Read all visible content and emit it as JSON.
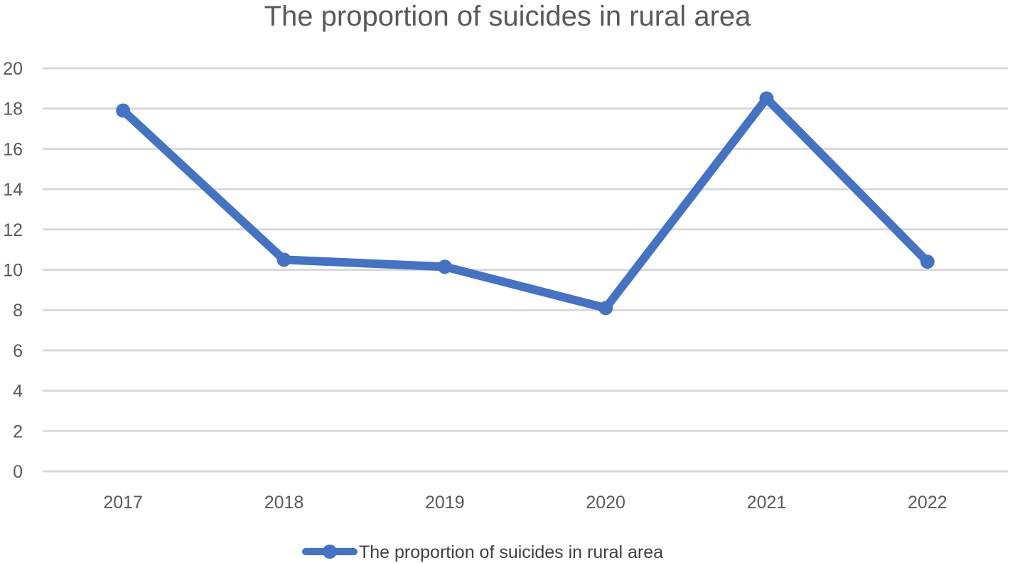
{
  "chart_data": {
    "type": "line",
    "title": "The proportion of suicides in rural area",
    "xlabel": "",
    "ylabel": "",
    "categories": [
      "2017",
      "2018",
      "2019",
      "2020",
      "2021",
      "2022"
    ],
    "series": [
      {
        "name": "The proportion of suicides in rural area",
        "values": [
          17.9,
          10.5,
          10.15,
          8.1,
          18.5,
          10.4
        ],
        "color": "#4472c4",
        "marker": "circle"
      }
    ],
    "ylim": [
      0,
      20
    ],
    "yticks": [
      0,
      2,
      4,
      6,
      8,
      10,
      12,
      14,
      16,
      18,
      20
    ],
    "grid": "horizontal",
    "legend": "bottom"
  },
  "colors": {
    "series": "#4472c4",
    "grid": "#d9d9d9",
    "text": "#595959"
  }
}
